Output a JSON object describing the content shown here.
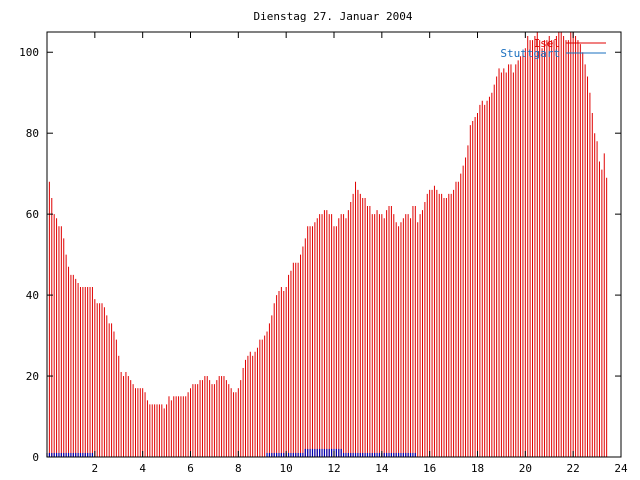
{
  "chart_data": {
    "type": "bar",
    "title": "Dienstag 27. Januar 2004",
    "xlabel": "",
    "ylabel": "",
    "xlim": [
      0,
      24
    ],
    "ylim": [
      0,
      105
    ],
    "xticks": [
      2,
      4,
      6,
      8,
      10,
      12,
      14,
      16,
      18,
      20,
      22,
      24
    ],
    "yticks": [
      0,
      20,
      40,
      60,
      80,
      100
    ],
    "grid": false,
    "legend_position": "top-right",
    "series": [
      {
        "name": "Isel",
        "color": "#e00000",
        "x_start": 0,
        "x_step": 0.1,
        "values": [
          69,
          68,
          64,
          60,
          59,
          57,
          57,
          54,
          50,
          47,
          45,
          45,
          44,
          43,
          42,
          42,
          42,
          42,
          42,
          42,
          39,
          38,
          38,
          38,
          37,
          35,
          33,
          33,
          31,
          29,
          25,
          21,
          20,
          21,
          20,
          19,
          18,
          17,
          17,
          17,
          17,
          16,
          14,
          13,
          13,
          13,
          13,
          13,
          13,
          12,
          13,
          15,
          14,
          15,
          15,
          15,
          15,
          15,
          15,
          16,
          17,
          18,
          18,
          18,
          19,
          19,
          20,
          20,
          19,
          18,
          18,
          19,
          20,
          20,
          20,
          19,
          18,
          17,
          16,
          16,
          17,
          19,
          22,
          24,
          25,
          26,
          25,
          26,
          27,
          29,
          29,
          30,
          31,
          33,
          35,
          38,
          40,
          41,
          42,
          41,
          42,
          45,
          46,
          48,
          48,
          48,
          50,
          52,
          54,
          57,
          57,
          57,
          58,
          59,
          60,
          60,
          61,
          61,
          60,
          60,
          57,
          57,
          59,
          60,
          60,
          59,
          61,
          63,
          65,
          68,
          66,
          65,
          64,
          64,
          62,
          62,
          60,
          60,
          61,
          60,
          60,
          59,
          61,
          62,
          62,
          60,
          58,
          57,
          58,
          59,
          60,
          60,
          59,
          62,
          62,
          58,
          60,
          61,
          63,
          65,
          66,
          66,
          67,
          66,
          65,
          65,
          64,
          64,
          65,
          65,
          66,
          68,
          68,
          70,
          72,
          74,
          77,
          82,
          83,
          84,
          85,
          87,
          88,
          87,
          88,
          89,
          90,
          92,
          94,
          96,
          95,
          96,
          95,
          97,
          97,
          95,
          97,
          98,
          99,
          100,
          101,
          104,
          103,
          103,
          104,
          105,
          103,
          101,
          103,
          103,
          104,
          103,
          103,
          104,
          105,
          105,
          104,
          103,
          103,
          105,
          105,
          104,
          103,
          102,
          100,
          97,
          94,
          90,
          85,
          80,
          78,
          73,
          71,
          75,
          69
        ]
      },
      {
        "name": "Stuttgart",
        "color": "#0000b0",
        "x_start": 0,
        "x_step": 0.1,
        "values": [
          1,
          1,
          1,
          1,
          1,
          1,
          1,
          1,
          1,
          1,
          1,
          1,
          1,
          1,
          1,
          1,
          1,
          1,
          1,
          1,
          0,
          0,
          0,
          0,
          0,
          0,
          0,
          0,
          0,
          0,
          0,
          0,
          0,
          0,
          0,
          0,
          0,
          0,
          0,
          0,
          0,
          0,
          0,
          0,
          0,
          0,
          0,
          0,
          0,
          0,
          0,
          0,
          0,
          0,
          0,
          0,
          0,
          0,
          0,
          0,
          0,
          0,
          0,
          0,
          0,
          0,
          0,
          0,
          0,
          0,
          0,
          0,
          0,
          0,
          0,
          0,
          0,
          0,
          0,
          0,
          0,
          0,
          0,
          0,
          0,
          0,
          0,
          0,
          0,
          0,
          0,
          0,
          1,
          1,
          1,
          1,
          1,
          1,
          1,
          1,
          1,
          1,
          1,
          1,
          1,
          1,
          1,
          1,
          2,
          2,
          2,
          2,
          2,
          2,
          2,
          2,
          2,
          2,
          2,
          2,
          2,
          2,
          2,
          2,
          1,
          1,
          1,
          1,
          1,
          1,
          1,
          1,
          1,
          1,
          1,
          1,
          1,
          1,
          1,
          1,
          1,
          1,
          1,
          1,
          1,
          1,
          1,
          1,
          1,
          1,
          1,
          1,
          1,
          1,
          1,
          0,
          0,
          0,
          0,
          0,
          0,
          0,
          0,
          0,
          0,
          0,
          0,
          0,
          0,
          0,
          0,
          0,
          0,
          0,
          0,
          0,
          0,
          0,
          0,
          0,
          0,
          0,
          0,
          0,
          0,
          0,
          0,
          0,
          0,
          0,
          0,
          0,
          0,
          0,
          0,
          0,
          0,
          0,
          0,
          0,
          0,
          0,
          0,
          0,
          0,
          0,
          0,
          0,
          0,
          0,
          0,
          0,
          0,
          0,
          0,
          0,
          0,
          0,
          0,
          0,
          0,
          0,
          0,
          0,
          0,
          0,
          0,
          0,
          0,
          0,
          0,
          0,
          0,
          0,
          0,
          0,
          0,
          0,
          0,
          0,
          0,
          0,
          0,
          0,
          0
        ]
      }
    ]
  }
}
